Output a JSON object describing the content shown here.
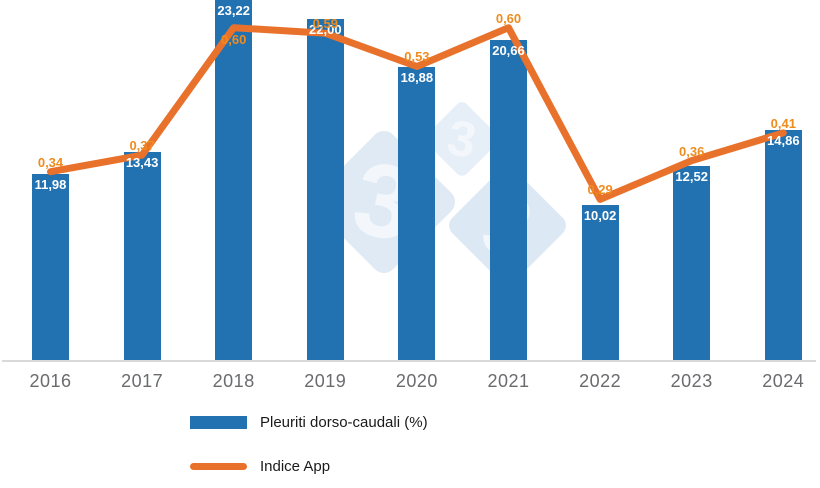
{
  "chart_data": {
    "type": "bar",
    "subtype": "bar-line-combo",
    "categories": [
      "2016",
      "2017",
      "2018",
      "2019",
      "2020",
      "2021",
      "2022",
      "2023",
      "2024"
    ],
    "series": [
      {
        "name": "Pleuriti dorso-caudali (%)",
        "type": "bar",
        "color": "#2272b2",
        "values": [
          11.98,
          13.43,
          23.22,
          22.0,
          18.88,
          20.66,
          10.02,
          12.52,
          14.86
        ],
        "value_labels": [
          "11,98",
          "13,43",
          "23,22",
          "22,00",
          "18,88",
          "20,66",
          "10,02",
          "12,52",
          "14,86"
        ],
        "label_color": "#ffffff"
      },
      {
        "name": "Indice App",
        "type": "line",
        "color": "#e8722c",
        "values": [
          0.34,
          0.37,
          0.6,
          0.59,
          0.53,
          0.6,
          0.29,
          0.36,
          0.41
        ],
        "value_labels": [
          "0,34",
          "0,37",
          "0,60",
          "0,59",
          "0,53",
          "0,60",
          "0,29",
          "0,36",
          "0,41"
        ],
        "label_color": "#ef8c1e",
        "label_positions": [
          "above",
          "above",
          "below",
          "above",
          "above",
          "above",
          "above",
          "above",
          "above"
        ]
      }
    ],
    "title": "",
    "xlabel": "",
    "ylabel": "",
    "axes": {
      "primary_y": {
        "min": 0,
        "max": 23.22,
        "visible": false
      },
      "secondary_y": {
        "min": 0,
        "max": 0.65,
        "visible": false
      },
      "gridlines": false,
      "baseline_color": "#d9d9d9",
      "x_label_color": "#6a6b6e"
    },
    "legend": {
      "position": "bottom-left",
      "items": [
        {
          "label": "Pleuriti dorso-caudali (%)",
          "swatch": "bar-rect",
          "color": "#2272b2"
        },
        {
          "label": "Indice App",
          "swatch": "line-segment",
          "color": "#e8722c"
        }
      ]
    }
  },
  "watermark": {
    "name": "333-diamonds-logo",
    "digits": [
      "3",
      "3",
      "3"
    ],
    "diamond_color": "#dfe9f4",
    "digit_color": "#f3f7fb"
  }
}
